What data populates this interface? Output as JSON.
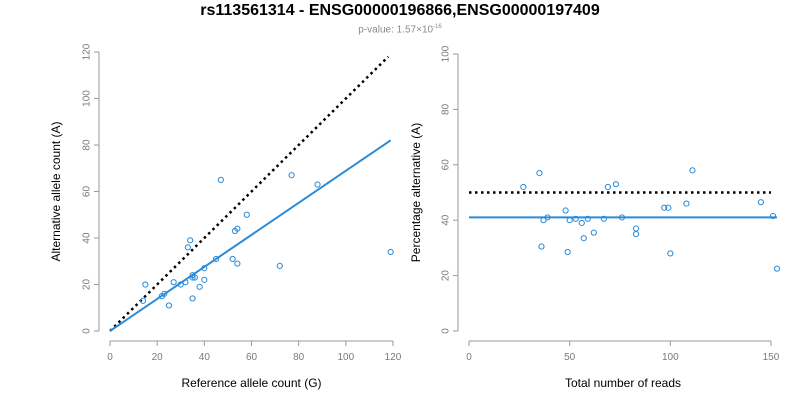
{
  "title": "rs113561314 - ENSG00000196866,ENSG00000197409",
  "subtitle": {
    "prefix": "p-value: 1.57",
    "times": "×",
    "base": "10",
    "exponent": "-16"
  },
  "colors": {
    "point": "#2a8bd8",
    "fit_line": "#2a8bd8",
    "reference_line": "#000000",
    "axis": "#9a9a9a",
    "tick_label": "#7a7a7a"
  },
  "chart_data": [
    {
      "type": "scatter",
      "name": "left-panel",
      "xlabel": "Reference allele count (G)",
      "ylabel": "Alternative allele count (A)",
      "xlim": [
        0,
        120
      ],
      "ylim": [
        0,
        120
      ],
      "xticks": [
        0,
        20,
        40,
        60,
        80,
        100,
        120
      ],
      "yticks": [
        0,
        20,
        40,
        60,
        80,
        100,
        120
      ],
      "points": [
        {
          "x": 14,
          "y": 13
        },
        {
          "x": 15,
          "y": 20
        },
        {
          "x": 22,
          "y": 15
        },
        {
          "x": 23,
          "y": 16
        },
        {
          "x": 25,
          "y": 11
        },
        {
          "x": 27,
          "y": 21
        },
        {
          "x": 30,
          "y": 20
        },
        {
          "x": 32,
          "y": 21
        },
        {
          "x": 33,
          "y": 36
        },
        {
          "x": 34,
          "y": 39
        },
        {
          "x": 35,
          "y": 23
        },
        {
          "x": 35,
          "y": 24
        },
        {
          "x": 35,
          "y": 14
        },
        {
          "x": 36,
          "y": 23
        },
        {
          "x": 38,
          "y": 19
        },
        {
          "x": 40,
          "y": 22
        },
        {
          "x": 40,
          "y": 27
        },
        {
          "x": 45,
          "y": 31
        },
        {
          "x": 47,
          "y": 65
        },
        {
          "x": 52,
          "y": 31
        },
        {
          "x": 53,
          "y": 43
        },
        {
          "x": 54,
          "y": 44
        },
        {
          "x": 54,
          "y": 29
        },
        {
          "x": 58,
          "y": 50
        },
        {
          "x": 72,
          "y": 28
        },
        {
          "x": 77,
          "y": 67
        },
        {
          "x": 88,
          "y": 63
        },
        {
          "x": 119,
          "y": 34
        }
      ],
      "fit_line": {
        "x": [
          0,
          119
        ],
        "y": [
          0,
          82
        ]
      },
      "reference_line": {
        "x": [
          0,
          118
        ],
        "y": [
          0,
          118
        ],
        "style": "dotted"
      }
    },
    {
      "type": "scatter",
      "name": "right-panel",
      "xlabel": "Total number of reads",
      "ylabel": "Percentage alternative (A)",
      "xlim": [
        0,
        153
      ],
      "ylim": [
        0,
        100
      ],
      "xticks": [
        0,
        50,
        100,
        150
      ],
      "yticks": [
        0,
        20,
        40,
        60,
        80,
        100
      ],
      "points": [
        {
          "x": 27,
          "y": 52
        },
        {
          "x": 35,
          "y": 57
        },
        {
          "x": 36,
          "y": 30.5
        },
        {
          "x": 37,
          "y": 40
        },
        {
          "x": 39,
          "y": 41
        },
        {
          "x": 48,
          "y": 43.5
        },
        {
          "x": 49,
          "y": 28.5
        },
        {
          "x": 50,
          "y": 40
        },
        {
          "x": 53,
          "y": 40.5
        },
        {
          "x": 56,
          "y": 39
        },
        {
          "x": 57,
          "y": 33.5
        },
        {
          "x": 59,
          "y": 40.5
        },
        {
          "x": 62,
          "y": 35.5
        },
        {
          "x": 67,
          "y": 40.5
        },
        {
          "x": 69,
          "y": 52
        },
        {
          "x": 73,
          "y": 53
        },
        {
          "x": 76,
          "y": 41
        },
        {
          "x": 83,
          "y": 37
        },
        {
          "x": 83,
          "y": 35
        },
        {
          "x": 97,
          "y": 44.5
        },
        {
          "x": 99,
          "y": 44.5
        },
        {
          "x": 100,
          "y": 28
        },
        {
          "x": 108,
          "y": 46
        },
        {
          "x": 111,
          "y": 58
        },
        {
          "x": 145,
          "y": 46.5
        },
        {
          "x": 151,
          "y": 41.5
        },
        {
          "x": 153,
          "y": 22.5
        }
      ],
      "fit_line": {
        "x": [
          0,
          153
        ],
        "y": [
          41,
          41
        ]
      },
      "reference_line": {
        "x": [
          0,
          150
        ],
        "y": [
          50,
          50
        ],
        "style": "dotted"
      }
    }
  ]
}
